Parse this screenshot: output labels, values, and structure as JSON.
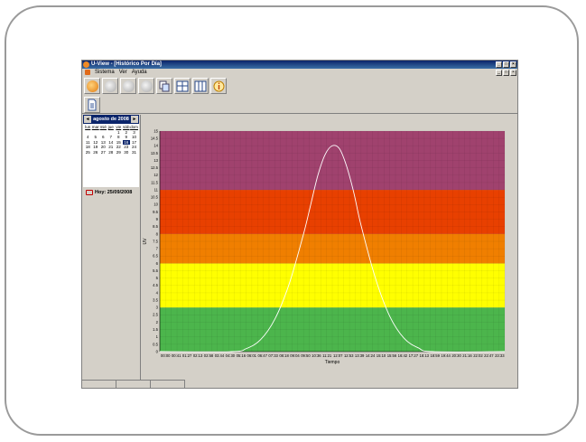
{
  "window": {
    "title": "U-View - [Histórico Por Día]",
    "buttons": [
      "_",
      "□",
      "×"
    ]
  },
  "menu": [
    "Sistema",
    "Ver",
    "Ayuda"
  ],
  "toolbar": {
    "icons": [
      "power-icon",
      "sun-icon",
      "sun-icon",
      "sun-icon",
      "copy-icon",
      "grid-icon",
      "columns-icon",
      "info-icon"
    ]
  },
  "calendar": {
    "month_label": "agosto de 2008",
    "prev": "◄",
    "next": "►",
    "day_headers": [
      "lun",
      "mar",
      "mié",
      "jue",
      "vie",
      "sáb",
      "dom"
    ],
    "weeks": [
      [
        "",
        "",
        "",
        "",
        "1",
        "2",
        "3"
      ],
      [
        "4",
        "5",
        "6",
        "7",
        "8",
        "9",
        "10"
      ],
      [
        "11",
        "12",
        "13",
        "14",
        "15",
        "16",
        "17"
      ],
      [
        "18",
        "19",
        "20",
        "21",
        "22",
        "23",
        "24"
      ],
      [
        "25",
        "26",
        "27",
        "28",
        "29",
        "30",
        "31"
      ]
    ],
    "selected_day": "16",
    "today_label": "Hoy: 25/09/2008"
  },
  "chart_data": {
    "type": "line",
    "xlabel": "Tiempo",
    "ylabel": "UV",
    "ylim": [
      0,
      15
    ],
    "yticks": [
      "0",
      "0.5",
      "1",
      "1.5",
      "2",
      "2.5",
      "3",
      "3.5",
      "4",
      "4.5",
      "5",
      "5.5",
      "6",
      "6.5",
      "7",
      "7.5",
      "8",
      "8.5",
      "9",
      "9.5",
      "10",
      "10.5",
      "11",
      "11.5",
      "12",
      "12.5",
      "13",
      "13.5",
      "14",
      "14.5",
      "15"
    ],
    "x_ticks": [
      "00:00",
      "00:41",
      "01:27",
      "02:13",
      "02:58",
      "03:44",
      "04:30",
      "05:16",
      "06:01",
      "06:47",
      "07:33",
      "08:18",
      "09:04",
      "09:50",
      "10:36",
      "11:21",
      "12:07",
      "12:53",
      "13:39",
      "14:24",
      "15:10",
      "15:56",
      "16:42",
      "17:27",
      "18:13",
      "18:59",
      "19:44",
      "20:30",
      "21:16",
      "22:02",
      "22:47",
      "23:33"
    ],
    "bands": [
      {
        "from": 0,
        "to": 3,
        "color": "#4cb54c"
      },
      {
        "from": 3,
        "to": 6,
        "color": "#ffff00"
      },
      {
        "from": 6,
        "to": 8,
        "color": "#f07f00"
      },
      {
        "from": 8,
        "to": 11,
        "color": "#e84000"
      },
      {
        "from": 11,
        "to": 15,
        "color": "#a0426e"
      }
    ],
    "grid": true,
    "series": [
      {
        "color": "#ffffff",
        "x_hours": [
          0,
          5.0,
          6.0,
          7.0,
          8.0,
          9.0,
          10.0,
          10.5,
          11.0,
          11.5,
          12.0,
          12.5,
          13.0,
          13.5,
          14.0,
          15.0,
          16.0,
          17.0,
          18.0,
          19.0,
          24
        ],
        "values": [
          0,
          0,
          0.2,
          0.8,
          2.2,
          4.6,
          8.0,
          10.0,
          12.0,
          13.4,
          14.0,
          13.8,
          12.6,
          10.8,
          8.6,
          5.0,
          2.4,
          0.9,
          0.25,
          0,
          0
        ]
      }
    ]
  }
}
